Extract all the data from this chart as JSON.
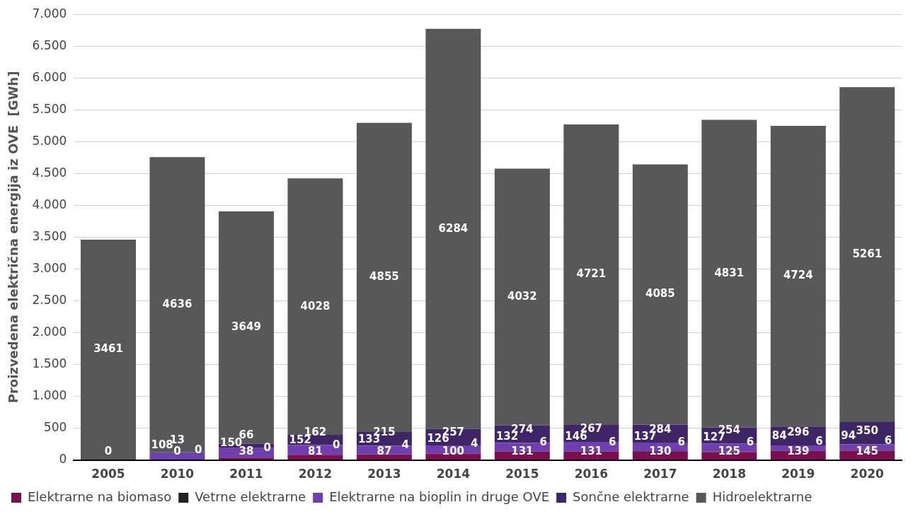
{
  "chart_data": {
    "type": "bar",
    "stacked": true,
    "ylabel": "Proizvedena električna energija iz OVE  [GWh]",
    "categories": [
      "2005",
      "2010",
      "2011",
      "2012",
      "2013",
      "2014",
      "2015",
      "2016",
      "2017",
      "2018",
      "2019",
      "2020"
    ],
    "series": [
      {
        "name": "Elektrarne na biomaso",
        "color": "#7b0f52",
        "values": [
          0,
          0,
          38,
          81,
          87,
          100,
          131,
          131,
          130,
          125,
          139,
          145
        ],
        "value_labels": [
          null,
          null,
          "38",
          "81",
          "87",
          "100",
          "131",
          "131",
          "130",
          "125",
          "139",
          "145"
        ]
      },
      {
        "name": "Vetrne elektrarne",
        "color": "#222222",
        "values": [
          null,
          0,
          0,
          0,
          4,
          4,
          6,
          6,
          6,
          6,
          6,
          6
        ],
        "value_labels": [
          null,
          null,
          null,
          null,
          "4",
          "4",
          "6",
          "6",
          "6",
          "6",
          "6",
          "6"
        ]
      },
      {
        "name": "Elektrarne na bioplin in druge OVE",
        "color": "#6f3fb0",
        "values": [
          null,
          108,
          150,
          152,
          133,
          126,
          132,
          146,
          137,
          127,
          84,
          94
        ],
        "value_labels": [
          null,
          "108",
          "150",
          "152",
          "133",
          "126",
          "132",
          "146",
          "137",
          "127",
          "84",
          "94"
        ]
      },
      {
        "name": "Sončne elektrarne",
        "color": "#3f2565",
        "values": [
          null,
          13,
          66,
          162,
          215,
          257,
          274,
          267,
          284,
          254,
          296,
          350
        ],
        "value_labels": [
          null,
          "13",
          "66",
          "162",
          "215",
          "257",
          "274",
          "267",
          "284",
          "254",
          "296",
          "350"
        ]
      },
      {
        "name": "Hidroelektrarne",
        "color": "#58585a",
        "values": [
          3461,
          4636,
          3649,
          4028,
          4855,
          6284,
          4032,
          4721,
          4085,
          4831,
          4724,
          5261
        ],
        "value_labels": [
          "3461",
          "4636",
          "3649",
          "4028",
          "4855",
          "6284",
          "4032",
          "4721",
          "4085",
          "4831",
          "4724",
          "5261"
        ]
      }
    ],
    "annotations": [
      {
        "text": "0",
        "x": "2005",
        "y": 0
      },
      {
        "text": "0",
        "x": "2010",
        "y": 0
      },
      {
        "text": "0",
        "x": "2010",
        "y": 0
      },
      {
        "text": "0",
        "x": "2011",
        "y": 0
      },
      {
        "text": "0",
        "x": "2012",
        "y": 0
      }
    ],
    "ylim": [
      0,
      7000
    ],
    "yticks": [
      {
        "value": 0,
        "label": "0"
      },
      {
        "value": 500,
        "label": "500"
      },
      {
        "value": 1000,
        "label": "1.000"
      },
      {
        "value": 1500,
        "label": "1.500"
      },
      {
        "value": 2000,
        "label": "2.000"
      },
      {
        "value": 2500,
        "label": "2.500"
      },
      {
        "value": 3000,
        "label": "3.000"
      },
      {
        "value": 3500,
        "label": "3.500"
      },
      {
        "value": 4000,
        "label": "4.000"
      },
      {
        "value": 4500,
        "label": "4.500"
      },
      {
        "value": 5000,
        "label": "5.000"
      },
      {
        "value": 5500,
        "label": "5.500"
      },
      {
        "value": 6000,
        "label": "6.000"
      },
      {
        "value": 6500,
        "label": "6.500"
      },
      {
        "value": 7000,
        "label": "7.000"
      }
    ],
    "grid": "y",
    "legend": "bottom"
  }
}
